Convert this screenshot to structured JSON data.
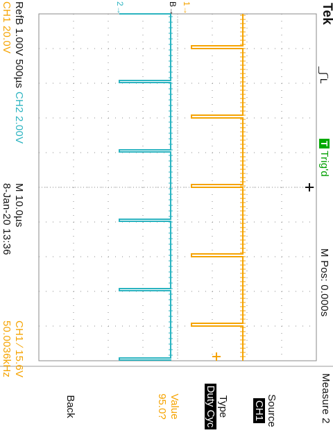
{
  "scope": {
    "brand": "Tek",
    "acq_status": "Trig'd",
    "trig_badge": "T",
    "horizontal": {
      "main_scale": "M 10.0µs",
      "position": "M Pos: 0.000s"
    },
    "channels": {
      "ch1_scale": "CH1  20.0V",
      "ch2_scale": "CH2  2.00V",
      "refb": "RefB 1.00V 500µs"
    },
    "date_time": "8-Jan-20 13:36",
    "trigger_readout": "CH1 ∕ 15.6V",
    "frequency": "50.0036kHz",
    "markers": {
      "ch1": "1→",
      "ch2": "2→",
      "refb": "B→"
    },
    "colors": {
      "ch1": "#f5a300",
      "ch2": "#2ab3c0",
      "trig": "#00a000",
      "grid": "#8a8a8a"
    }
  },
  "menu": {
    "title": "Measure 2",
    "source": {
      "label": "Source",
      "value": "CH1"
    },
    "type": {
      "label": "Type",
      "value": "Duty Cyc"
    },
    "value": {
      "label": "Value",
      "value": "95.0?"
    },
    "back": {
      "label": "Back"
    }
  }
}
